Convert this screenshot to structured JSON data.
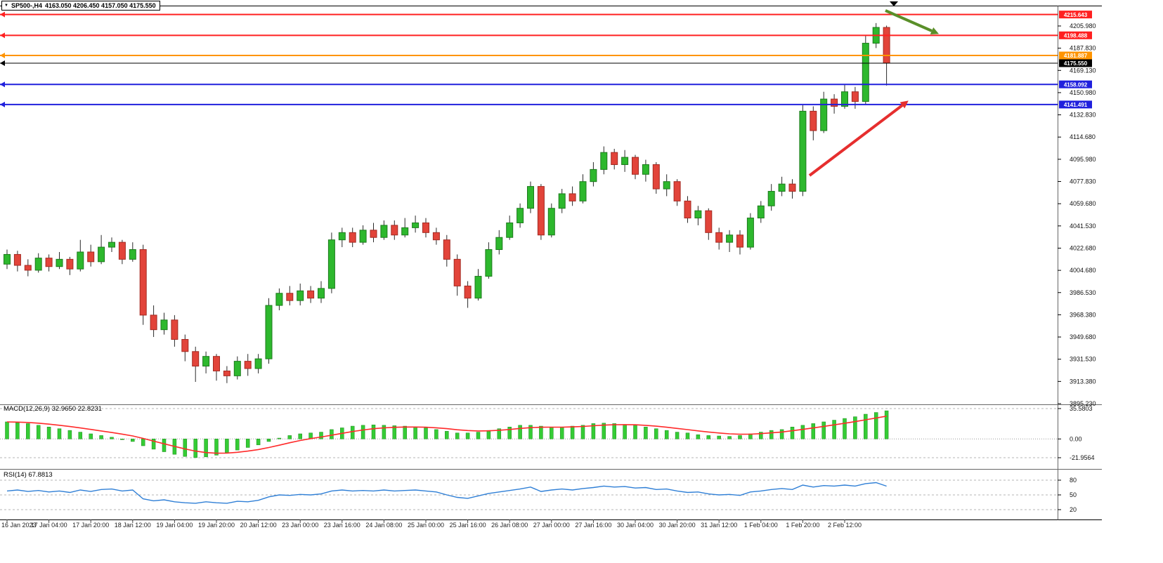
{
  "window": {
    "dropdown_icon": "▼",
    "title_symbol": "SP500-,H4",
    "title_ohlc": "4163.050 4206.450 4157.050 4175.550"
  },
  "colors": {
    "bull": "#2db82d",
    "bull_border": "#1d7a1d",
    "bear": "#e2443a",
    "bear_border": "#a32a22",
    "wick": "#2a2a2a",
    "level_red": "#ff2020",
    "level_orange": "#ff9400",
    "level_blue": "#2020dd",
    "level_black": "#000000",
    "macd_hist": "#35cc35",
    "macd_hist_border": "#1d8a1d",
    "macd_signal": "#ff2a2a",
    "rsi_line": "#2f7fd6",
    "arrow_green": "#5a8f29",
    "arrow_red": "#e62e2e"
  },
  "chart_data": {
    "type": "candlestick",
    "symbol": "SP500-",
    "timeframe": "H4",
    "ohlc_current": {
      "open": 4163.05,
      "high": 4206.45,
      "low": 4157.05,
      "close": 4175.55
    },
    "price_axis": {
      "labels": [
        "4205.980",
        "4187.830",
        "4169.130",
        "4150.980",
        "4132.830",
        "4114.680",
        "4095.980",
        "4077.830",
        "4059.680",
        "4041.530",
        "4022.680",
        "4004.680",
        "3986.530",
        "3968.380",
        "3949.680",
        "3931.530",
        "3913.380",
        "3895.230"
      ]
    },
    "time_axis": {
      "labels": [
        "16 Jan 2023",
        "17 Jan 04:00",
        "17 Jan 20:00",
        "18 Jan 12:00",
        "19 Jan 04:00",
        "19 Jan 20:00",
        "20 Jan 12:00",
        "23 Jan 00:00",
        "23 Jan 16:00",
        "24 Jan 08:00",
        "25 Jan 00:00",
        "25 Jan 16:00",
        "26 Jan 08:00",
        "27 Jan 00:00",
        "27 Jan 16:00",
        "30 Jan 04:00",
        "30 Jan 20:00",
        "31 Jan 12:00",
        "1 Feb 04:00",
        "1 Feb 20:00",
        "2 Feb 12:00"
      ]
    },
    "levels": [
      {
        "value": 4215.643,
        "label": "4215.643",
        "color": "level_red",
        "thickness": 2
      },
      {
        "value": 4198.488,
        "label": "4198.488",
        "color": "level_red",
        "thickness": 2
      },
      {
        "value": 4181.887,
        "label": "4181.887",
        "color": "level_orange",
        "thickness": 2
      },
      {
        "value": 4175.55,
        "label": "4175.550",
        "color": "level_black",
        "thickness": 1,
        "current": true
      },
      {
        "value": 4158.092,
        "label": "4158.092",
        "color": "level_blue",
        "thickness": 2
      },
      {
        "value": 4141.491,
        "label": "4141.491",
        "color": "level_blue",
        "thickness": 2
      }
    ],
    "candles": [
      [
        4010,
        4022,
        4006,
        4018
      ],
      [
        4018,
        4021,
        4004,
        4009
      ],
      [
        4009,
        4014,
        4000,
        4005
      ],
      [
        4005,
        4019,
        4003,
        4015
      ],
      [
        4015,
        4018,
        4004,
        4008
      ],
      [
        4008,
        4020,
        4006,
        4014
      ],
      [
        4014,
        4016,
        4001,
        4006
      ],
      [
        4006,
        4030,
        4004,
        4020
      ],
      [
        4020,
        4026,
        4008,
        4012
      ],
      [
        4012,
        4034,
        4010,
        4024
      ],
      [
        4024,
        4032,
        4020,
        4028
      ],
      [
        4028,
        4030,
        4010,
        4014
      ],
      [
        4014,
        4028,
        4012,
        4022
      ],
      [
        4022,
        4026,
        3960,
        3968
      ],
      [
        3968,
        3976,
        3950,
        3956
      ],
      [
        3956,
        3970,
        3952,
        3964
      ],
      [
        3964,
        3968,
        3942,
        3948
      ],
      [
        3948,
        3952,
        3930,
        3938
      ],
      [
        3938,
        3942,
        3913,
        3926
      ],
      [
        3926,
        3938,
        3920,
        3934
      ],
      [
        3934,
        3936,
        3914,
        3922
      ],
      [
        3922,
        3926,
        3912,
        3918
      ],
      [
        3918,
        3934,
        3915,
        3930
      ],
      [
        3930,
        3936,
        3918,
        3924
      ],
      [
        3924,
        3936,
        3920,
        3932
      ],
      [
        3932,
        3982,
        3928,
        3976
      ],
      [
        3976,
        3990,
        3972,
        3986
      ],
      [
        3986,
        3992,
        3976,
        3980
      ],
      [
        3980,
        3994,
        3976,
        3988
      ],
      [
        3988,
        3992,
        3978,
        3982
      ],
      [
        3982,
        3996,
        3978,
        3990
      ],
      [
        3990,
        4036,
        3986,
        4030
      ],
      [
        4030,
        4040,
        4024,
        4036
      ],
      [
        4036,
        4040,
        4024,
        4028
      ],
      [
        4028,
        4042,
        4026,
        4038
      ],
      [
        4038,
        4044,
        4028,
        4032
      ],
      [
        4032,
        4046,
        4030,
        4042
      ],
      [
        4042,
        4046,
        4030,
        4034
      ],
      [
        4034,
        4048,
        4032,
        4040
      ],
      [
        4040,
        4050,
        4036,
        4044
      ],
      [
        4044,
        4048,
        4032,
        4036
      ],
      [
        4036,
        4040,
        4026,
        4030
      ],
      [
        4030,
        4034,
        4008,
        4014
      ],
      [
        4014,
        4018,
        3984,
        3992
      ],
      [
        3992,
        3996,
        3974,
        3982
      ],
      [
        3982,
        4006,
        3980,
        4000
      ],
      [
        4000,
        4028,
        3998,
        4022
      ],
      [
        4022,
        4038,
        4018,
        4032
      ],
      [
        4032,
        4050,
        4030,
        4044
      ],
      [
        4044,
        4060,
        4040,
        4056
      ],
      [
        4056,
        4078,
        4052,
        4074
      ],
      [
        4074,
        4076,
        4030,
        4034
      ],
      [
        4034,
        4060,
        4032,
        4056
      ],
      [
        4056,
        4072,
        4052,
        4068
      ],
      [
        4068,
        4074,
        4058,
        4062
      ],
      [
        4062,
        4084,
        4060,
        4078
      ],
      [
        4078,
        4094,
        4074,
        4088
      ],
      [
        4088,
        4107,
        4084,
        4102
      ],
      [
        4102,
        4105,
        4088,
        4092
      ],
      [
        4092,
        4104,
        4086,
        4098
      ],
      [
        4098,
        4100,
        4080,
        4084
      ],
      [
        4084,
        4096,
        4078,
        4092
      ],
      [
        4092,
        4094,
        4068,
        4072
      ],
      [
        4072,
        4084,
        4066,
        4078
      ],
      [
        4078,
        4080,
        4058,
        4062
      ],
      [
        4062,
        4066,
        4044,
        4048
      ],
      [
        4048,
        4058,
        4042,
        4054
      ],
      [
        4054,
        4056,
        4030,
        4036
      ],
      [
        4036,
        4040,
        4022,
        4028
      ],
      [
        4028,
        4038,
        4020,
        4034
      ],
      [
        4034,
        4038,
        4018,
        4024
      ],
      [
        4024,
        4052,
        4022,
        4048
      ],
      [
        4048,
        4062,
        4044,
        4058
      ],
      [
        4058,
        4076,
        4054,
        4070
      ],
      [
        4070,
        4082,
        4066,
        4076
      ],
      [
        4076,
        4080,
        4064,
        4070
      ],
      [
        4070,
        4141,
        4066,
        4136
      ],
      [
        4136,
        4140,
        4112,
        4120
      ],
      [
        4120,
        4152,
        4118,
        4146
      ],
      [
        4146,
        4150,
        4134,
        4140
      ],
      [
        4140,
        4158,
        4138,
        4152
      ],
      [
        4152,
        4156,
        4138,
        4144
      ],
      [
        4144,
        4198,
        4142,
        4192
      ],
      [
        4192,
        4208.6,
        4188,
        4205
      ],
      [
        4205,
        4206.5,
        4157.1,
        4175.6
      ]
    ],
    "indicators": {
      "macd": {
        "label": "MACD(12,26,9) 32.9650 22.8231",
        "main": 32.965,
        "signal": 22.8231,
        "axis_labels": [
          "35.5803",
          "0.00",
          "-21.9564"
        ],
        "histogram": [
          20,
          19,
          18,
          16,
          14,
          12,
          10,
          8,
          6,
          4,
          2,
          0,
          -3,
          -8,
          -12,
          -15,
          -18,
          -20.5,
          -21.9,
          -21,
          -19,
          -16,
          -13,
          -10,
          -7,
          -3,
          1,
          4,
          6,
          7,
          8,
          11,
          13,
          15,
          16,
          16.5,
          16,
          15.5,
          15,
          14,
          13,
          11,
          9,
          7,
          7,
          8,
          10,
          12,
          14,
          16,
          16,
          15,
          14,
          14,
          15,
          16,
          18,
          18.5,
          18,
          17,
          16,
          14,
          12,
          10,
          8,
          7,
          5,
          4,
          3.5,
          3,
          4,
          6,
          8,
          10,
          11,
          14,
          16,
          18,
          20,
          22,
          24,
          26,
          29,
          31,
          33
        ]
      },
      "rsi": {
        "label": "RSI(14) 67.8813",
        "value": 67.8813,
        "levels": [
          {
            "value": 80,
            "label": "80"
          },
          {
            "value": 50,
            "label": "50"
          },
          {
            "value": 20,
            "label": "20"
          }
        ],
        "values": [
          58,
          60,
          57,
          59,
          56,
          58,
          55,
          60,
          57,
          61,
          62,
          58,
          60,
          42,
          38,
          40,
          36,
          34,
          33,
          36,
          34,
          33,
          37,
          36,
          39,
          46,
          50,
          49,
          51,
          50,
          52,
          58,
          60,
          58,
          59,
          58,
          60,
          58,
          59,
          60,
          58,
          56,
          50,
          45,
          43,
          48,
          53,
          56,
          59,
          62,
          66,
          57,
          60,
          62,
          60,
          63,
          65,
          68,
          66,
          67,
          64,
          65,
          61,
          62,
          58,
          55,
          56,
          52,
          50,
          51,
          49,
          56,
          58,
          61,
          63,
          61,
          70,
          66,
          69,
          68,
          70,
          68,
          73,
          75,
          67.9
        ]
      }
    },
    "annotations": [
      {
        "type": "arrow",
        "name": "resistance-arrow",
        "color": "arrow_green",
        "from": [
          1260,
          15
        ],
        "to": [
          1326,
          44
        ],
        "width": 4
      },
      {
        "type": "arrow",
        "name": "support-arrow",
        "color": "arrow_red",
        "from": [
          1152,
          250
        ],
        "to": [
          1284,
          150
        ],
        "width": 4
      },
      {
        "type": "triangle-marker",
        "name": "top-marker",
        "at": [
          1272,
          2
        ],
        "color": "#000000"
      }
    ]
  }
}
